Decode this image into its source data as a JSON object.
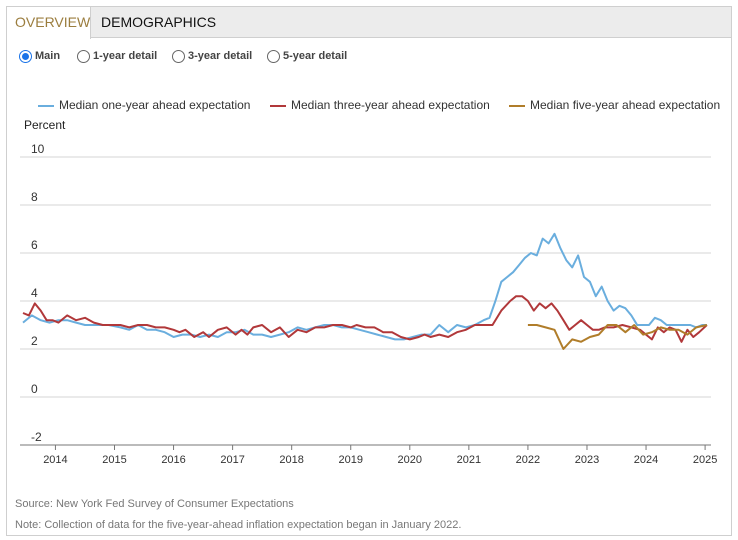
{
  "tabs": [
    {
      "label": "OVERVIEW",
      "active": true
    },
    {
      "label": "DEMOGRAPHICS",
      "active": false
    }
  ],
  "radios": [
    {
      "label": "Main",
      "selected": true
    },
    {
      "label": "1-year detail",
      "selected": false
    },
    {
      "label": "3-year detail",
      "selected": false
    },
    {
      "label": "5-year detail",
      "selected": false
    }
  ],
  "legend": [
    {
      "label": "Median one-year ahead expectation",
      "color": "#6aaede"
    },
    {
      "label": "Median three-year ahead expectation",
      "color": "#b1383a"
    },
    {
      "label": "Median five-year ahead expectation",
      "color": "#b07d2a"
    }
  ],
  "footer": {
    "source": "Source: New York Fed Survey of Consumer Expectations",
    "note": "Note: Collection of data for the five-year-ahead inflation expectation began in January 2022."
  },
  "chart_data": {
    "type": "line",
    "ylabel": "Percent",
    "ylim": [
      -2,
      10
    ],
    "yticks": [
      -2,
      0,
      2,
      4,
      6,
      8,
      10
    ],
    "xlim": [
      2013.4,
      2025.1
    ],
    "xticks": [
      2014,
      2015,
      2016,
      2017,
      2018,
      2019,
      2020,
      2021,
      2022,
      2023,
      2024,
      2025
    ],
    "grid": true,
    "series": [
      {
        "name": "Median one-year ahead expectation",
        "color": "#6aaede",
        "x": [
          2013.45,
          2013.6,
          2013.75,
          2013.9,
          2014.05,
          2014.2,
          2014.35,
          2014.5,
          2014.7,
          2014.9,
          2015.1,
          2015.25,
          2015.4,
          2015.55,
          2015.7,
          2015.85,
          2016.0,
          2016.15,
          2016.3,
          2016.45,
          2016.6,
          2016.75,
          2016.9,
          2017.05,
          2017.2,
          2017.35,
          2017.5,
          2017.65,
          2017.8,
          2017.95,
          2018.1,
          2018.25,
          2018.4,
          2018.55,
          2018.7,
          2018.85,
          2019.0,
          2019.15,
          2019.3,
          2019.45,
          2019.6,
          2019.75,
          2019.9,
          2020.05,
          2020.2,
          2020.35,
          2020.5,
          2020.65,
          2020.8,
          2020.95,
          2021.1,
          2021.25,
          2021.35,
          2021.45,
          2021.55,
          2021.65,
          2021.75,
          2021.85,
          2021.95,
          2022.05,
          2022.15,
          2022.25,
          2022.35,
          2022.45,
          2022.55,
          2022.65,
          2022.75,
          2022.85,
          2022.95,
          2023.05,
          2023.15,
          2023.25,
          2023.35,
          2023.45,
          2023.55,
          2023.65,
          2023.75,
          2023.85,
          2023.95,
          2024.05,
          2024.15,
          2024.25,
          2024.35,
          2024.45,
          2024.55,
          2024.65,
          2024.75,
          2024.85,
          2024.95,
          2025.03
        ],
        "y": [
          3.1,
          3.4,
          3.2,
          3.1,
          3.2,
          3.2,
          3.1,
          3.0,
          3.0,
          3.0,
          2.9,
          2.8,
          3.0,
          2.8,
          2.8,
          2.7,
          2.5,
          2.6,
          2.6,
          2.5,
          2.6,
          2.5,
          2.7,
          2.7,
          2.8,
          2.6,
          2.6,
          2.5,
          2.6,
          2.7,
          2.9,
          2.8,
          2.9,
          3.0,
          3.0,
          2.9,
          2.9,
          2.8,
          2.7,
          2.6,
          2.5,
          2.4,
          2.4,
          2.5,
          2.6,
          2.6,
          3.0,
          2.7,
          3.0,
          2.9,
          3.0,
          3.2,
          3.3,
          4.0,
          4.8,
          5.0,
          5.2,
          5.5,
          5.8,
          6.0,
          5.9,
          6.6,
          6.4,
          6.8,
          6.2,
          5.7,
          5.4,
          5.9,
          5.0,
          4.8,
          4.2,
          4.6,
          4.0,
          3.6,
          3.8,
          3.7,
          3.4,
          3.0,
          3.0,
          3.0,
          3.3,
          3.2,
          3.0,
          3.0,
          3.0,
          3.0,
          3.0,
          2.9,
          3.0,
          3.0
        ]
      },
      {
        "name": "Median three-year ahead expectation",
        "color": "#b1383a",
        "x": [
          2013.45,
          2013.55,
          2013.65,
          2013.75,
          2013.85,
          2013.95,
          2014.05,
          2014.2,
          2014.35,
          2014.5,
          2014.65,
          2014.8,
          2014.95,
          2015.1,
          2015.25,
          2015.4,
          2015.55,
          2015.7,
          2015.85,
          2016.0,
          2016.1,
          2016.2,
          2016.35,
          2016.5,
          2016.6,
          2016.75,
          2016.9,
          2017.05,
          2017.15,
          2017.25,
          2017.35,
          2017.5,
          2017.65,
          2017.8,
          2017.95,
          2018.1,
          2018.25,
          2018.4,
          2018.55,
          2018.7,
          2018.85,
          2019.0,
          2019.1,
          2019.25,
          2019.4,
          2019.55,
          2019.7,
          2019.85,
          2020.0,
          2020.15,
          2020.25,
          2020.35,
          2020.5,
          2020.65,
          2020.8,
          2020.95,
          2021.1,
          2021.25,
          2021.4,
          2021.55,
          2021.7,
          2021.8,
          2021.9,
          2022.0,
          2022.1,
          2022.2,
          2022.3,
          2022.4,
          2022.5,
          2022.6,
          2022.7,
          2022.8,
          2022.9,
          2023.0,
          2023.1,
          2023.2,
          2023.3,
          2023.45,
          2023.6,
          2023.75,
          2023.9,
          2024.0,
          2024.1,
          2024.2,
          2024.3,
          2024.4,
          2024.5,
          2024.6,
          2024.7,
          2024.8,
          2024.9,
          2025.03
        ],
        "y": [
          3.5,
          3.4,
          3.9,
          3.6,
          3.2,
          3.2,
          3.1,
          3.4,
          3.2,
          3.3,
          3.1,
          3.0,
          3.0,
          3.0,
          2.9,
          3.0,
          3.0,
          2.9,
          2.9,
          2.8,
          2.7,
          2.8,
          2.5,
          2.7,
          2.5,
          2.8,
          2.9,
          2.6,
          2.8,
          2.6,
          2.9,
          3.0,
          2.7,
          2.9,
          2.5,
          2.8,
          2.7,
          2.9,
          2.9,
          3.0,
          3.0,
          2.9,
          3.0,
          2.9,
          2.9,
          2.7,
          2.7,
          2.5,
          2.4,
          2.5,
          2.6,
          2.5,
          2.6,
          2.5,
          2.7,
          2.8,
          3.0,
          3.0,
          3.0,
          3.6,
          4.0,
          4.2,
          4.2,
          4.0,
          3.6,
          3.9,
          3.7,
          3.9,
          3.6,
          3.2,
          2.8,
          3.0,
          3.2,
          3.0,
          2.8,
          2.8,
          2.9,
          2.9,
          3.0,
          2.9,
          2.8,
          2.6,
          2.4,
          2.9,
          2.7,
          2.9,
          2.8,
          2.3,
          2.8,
          2.5,
          2.7,
          3.0
        ]
      },
      {
        "name": "Median five-year ahead expectation",
        "color": "#b07d2a",
        "x": [
          2022.0,
          2022.15,
          2022.3,
          2022.45,
          2022.6,
          2022.75,
          2022.9,
          2023.05,
          2023.2,
          2023.35,
          2023.5,
          2023.65,
          2023.8,
          2023.95,
          2024.1,
          2024.25,
          2024.4,
          2024.55,
          2024.7,
          2024.85,
          2025.03
        ],
        "y": [
          3.0,
          3.0,
          2.9,
          2.8,
          2.0,
          2.4,
          2.3,
          2.5,
          2.6,
          3.0,
          3.0,
          2.7,
          3.0,
          2.6,
          2.7,
          2.9,
          2.8,
          2.8,
          2.6,
          2.9,
          3.0
        ]
      }
    ]
  }
}
